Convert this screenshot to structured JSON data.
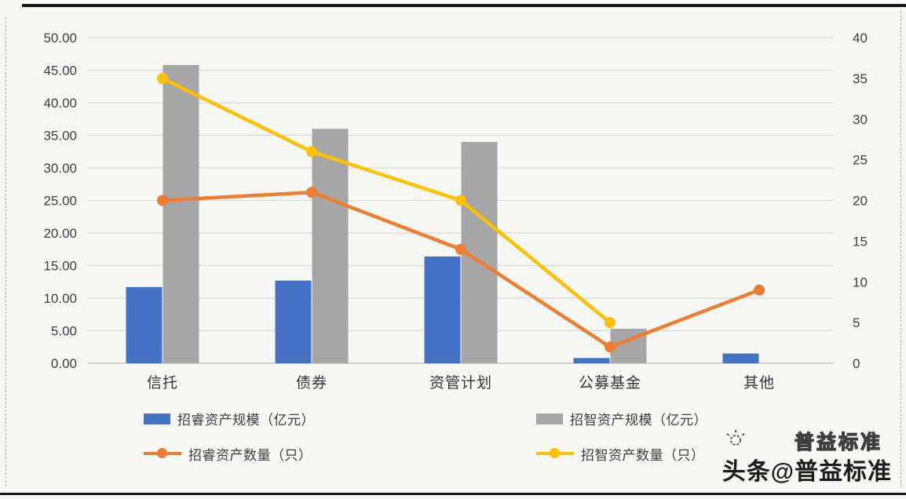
{
  "chart_data": {
    "type": "bar+line combo",
    "title": "",
    "xlabel": "",
    "ylabel": "",
    "categories": [
      "信托",
      "债券",
      "资管计划",
      "公募基金",
      "其他"
    ],
    "series": [
      {
        "name": "招睿资产规模（亿元）",
        "type": "bar",
        "axis": "left",
        "color": "#4472C4",
        "values": [
          11.7,
          12.7,
          16.4,
          0.8,
          1.5
        ]
      },
      {
        "name": "招智资产规模（亿元）",
        "type": "bar",
        "axis": "left",
        "color": "#A6A6A6",
        "values": [
          45.8,
          36.0,
          34.0,
          5.3,
          null
        ]
      },
      {
        "name": "招睿资产数量（只）",
        "type": "line",
        "axis": "right",
        "color": "#ED7D31",
        "values": [
          20,
          21,
          14,
          2,
          9
        ]
      },
      {
        "name": "招智资产数量（只）",
        "type": "line",
        "axis": "right",
        "color": "#FFC000",
        "values": [
          35,
          26,
          20,
          5,
          null
        ]
      }
    ],
    "left_axis": {
      "min": 0,
      "max": 50,
      "step": 5,
      "tick_format": "two-decimals",
      "tick_labels": [
        "0.00",
        "5.00",
        "10.00",
        "15.00",
        "20.00",
        "25.00",
        "30.00",
        "35.00",
        "40.00",
        "45.00",
        "50.00"
      ]
    },
    "right_axis": {
      "min": 0,
      "max": 40,
      "step": 5,
      "tick_format": "integer",
      "tick_labels": [
        "0",
        "5",
        "10",
        "15",
        "20",
        "25",
        "30",
        "35",
        "40"
      ]
    },
    "grid": "horizontal",
    "legend_position": "bottom"
  },
  "watermark": {
    "main": "头条@普益标准",
    "ghost": "普益标准"
  },
  "style_colors": {
    "grid_line": "#d9d9d9",
    "axis_line": "#bdbdbd",
    "tick_text": "#3f3f3f",
    "background": "#f7f7f6"
  }
}
